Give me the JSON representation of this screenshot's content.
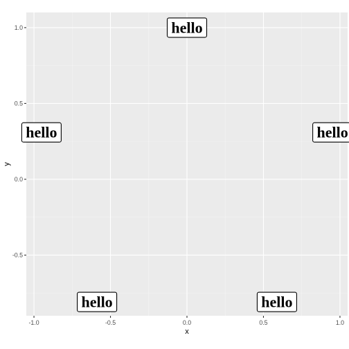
{
  "chart_data": {
    "type": "scatter",
    "title": "",
    "xlabel": "x",
    "ylabel": "y",
    "xlim": [
      -1.05,
      1.05
    ],
    "ylim": [
      -0.9,
      1.1
    ],
    "xticks": [
      -1.0,
      -0.5,
      0.0,
      0.5,
      1.0
    ],
    "xtick_labels": [
      "-1.0",
      "-0.5",
      "0.0",
      "0.5",
      "1.0"
    ],
    "yticks": [
      -0.5,
      0.0,
      0.5,
      1.0
    ],
    "ytick_labels": [
      "-0.5",
      "0.0",
      "0.5",
      "1.0"
    ],
    "grid": true,
    "legend": false,
    "points": [
      {
        "x": 0.0,
        "y": 1.0,
        "label": "hello"
      },
      {
        "x": 0.951,
        "y": 0.309,
        "label": "hello"
      },
      {
        "x": 0.588,
        "y": -0.809,
        "label": "hello"
      },
      {
        "x": -0.588,
        "y": -0.809,
        "label": "hello"
      },
      {
        "x": -0.951,
        "y": 0.309,
        "label": "hello"
      }
    ],
    "colors": {
      "panel_background": "#ebebeb",
      "grid_major": "#ffffff",
      "grid_minor": "#f5f5f5",
      "label_fill": "#ffffff",
      "label_border": "#000000"
    }
  }
}
